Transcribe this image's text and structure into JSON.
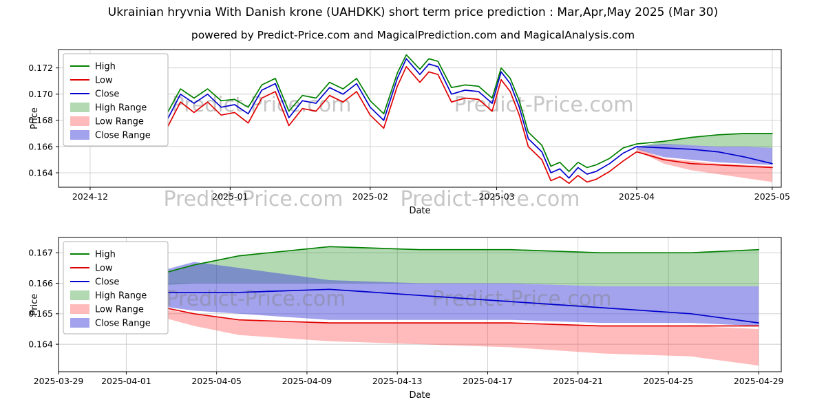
{
  "page": {
    "title": "Ukrainian hryvnia With Danish krone (UAHDKK) short term price prediction : Mar,Apr,May 2025 (Mar 30)",
    "subtitle": "powered by Predict-Price.com and MagicalPrediction.com and MagicalAnalysis.com"
  },
  "watermark_text": "Predict-Price.com",
  "chart_data": [
    {
      "type": "line",
      "xlabel": "Date",
      "ylabel": "Price",
      "x_unit": "days since 2024-11-24",
      "x_domain": [
        0,
        160
      ],
      "y_domain": [
        0.1629,
        0.1734
      ],
      "grid": true,
      "x_ticks": [
        {
          "v": 7,
          "label": "2024-12"
        },
        {
          "v": 38,
          "label": "2025-01"
        },
        {
          "v": 69,
          "label": "2025-02"
        },
        {
          "v": 97,
          "label": "2025-03"
        },
        {
          "v": 128,
          "label": "2025-04"
        },
        {
          "v": 158,
          "label": "2025-05"
        }
      ],
      "y_ticks": [
        0.164,
        0.166,
        0.168,
        0.17,
        0.172
      ],
      "legend": {
        "position": "upper left",
        "entries": [
          {
            "label": "High",
            "type": "line",
            "color": "#008000"
          },
          {
            "label": "Low",
            "type": "line",
            "color": "#e00000"
          },
          {
            "label": "Close",
            "type": "line",
            "color": "#0000cd"
          },
          {
            "label": "High Range",
            "type": "patch",
            "color": "rgba(0,128,0,0.30)"
          },
          {
            "label": "Low Range",
            "type": "patch",
            "color": "rgba(255,60,60,0.35)"
          },
          {
            "label": "Close Range",
            "type": "patch",
            "color": "rgba(70,70,220,0.50)"
          }
        ]
      },
      "series": [
        {
          "name": "High",
          "color": "#008000",
          "x": [
            21,
            24,
            27,
            30,
            33,
            36,
            39,
            42,
            45,
            48,
            51,
            54,
            57,
            60,
            63,
            66,
            69,
            72,
            75,
            77,
            80,
            82,
            84,
            87,
            90,
            93,
            96,
            98,
            100,
            102,
            104,
            107,
            109,
            111,
            113,
            115,
            117,
            119,
            122,
            125,
            128,
            134,
            140,
            146,
            152,
            158
          ],
          "y": [
            0.1697,
            0.1685,
            0.1704,
            0.1697,
            0.1704,
            0.1695,
            0.1696,
            0.169,
            0.1707,
            0.1712,
            0.1687,
            0.1699,
            0.1697,
            0.1709,
            0.1704,
            0.1712,
            0.1695,
            0.1685,
            0.1716,
            0.173,
            0.1719,
            0.1727,
            0.1725,
            0.1705,
            0.1707,
            0.1706,
            0.1697,
            0.172,
            0.1712,
            0.1695,
            0.1671,
            0.1661,
            0.1645,
            0.1648,
            0.1641,
            0.1648,
            0.1644,
            0.1646,
            0.1651,
            0.1659,
            0.1662,
            0.1664,
            0.1667,
            0.1669,
            0.167,
            0.167
          ]
        },
        {
          "name": "Low",
          "color": "#e00000",
          "x": [
            21,
            24,
            27,
            30,
            33,
            36,
            39,
            42,
            45,
            48,
            51,
            54,
            57,
            60,
            63,
            66,
            69,
            72,
            75,
            77,
            80,
            82,
            84,
            87,
            90,
            93,
            96,
            98,
            100,
            102,
            104,
            107,
            109,
            111,
            113,
            115,
            117,
            119,
            122,
            125,
            128,
            134,
            140,
            146,
            152,
            158
          ],
          "y": [
            0.1687,
            0.1674,
            0.1694,
            0.1686,
            0.1694,
            0.1684,
            0.1686,
            0.1678,
            0.1697,
            0.1702,
            0.1676,
            0.1689,
            0.1687,
            0.1699,
            0.1694,
            0.1702,
            0.1684,
            0.1674,
            0.1706,
            0.1721,
            0.1709,
            0.1717,
            0.1715,
            0.1694,
            0.1697,
            0.1696,
            0.1687,
            0.1711,
            0.1702,
            0.1684,
            0.166,
            0.165,
            0.1634,
            0.1637,
            0.1632,
            0.1638,
            0.1633,
            0.1635,
            0.1641,
            0.1649,
            0.1656,
            0.165,
            0.1647,
            0.1646,
            0.1645,
            0.1644
          ]
        },
        {
          "name": "Close",
          "color": "#0000cd",
          "x": [
            21,
            24,
            27,
            30,
            33,
            36,
            39,
            42,
            45,
            48,
            51,
            54,
            57,
            60,
            63,
            66,
            69,
            72,
            75,
            77,
            80,
            82,
            84,
            87,
            90,
            93,
            96,
            98,
            100,
            102,
            104,
            107,
            109,
            111,
            113,
            115,
            117,
            119,
            122,
            125,
            128,
            134,
            140,
            146,
            152,
            158
          ],
          "y": [
            0.1693,
            0.168,
            0.17,
            0.1693,
            0.17,
            0.169,
            0.1692,
            0.1685,
            0.1703,
            0.1708,
            0.1682,
            0.1695,
            0.1693,
            0.1705,
            0.17,
            0.1708,
            0.169,
            0.168,
            0.1712,
            0.1727,
            0.1715,
            0.1723,
            0.1721,
            0.17,
            0.1703,
            0.1702,
            0.1693,
            0.1717,
            0.1708,
            0.169,
            0.1666,
            0.1656,
            0.164,
            0.1643,
            0.1636,
            0.1644,
            0.1639,
            0.1641,
            0.1647,
            0.1655,
            0.166,
            0.1659,
            0.1658,
            0.1656,
            0.1652,
            0.1647
          ]
        }
      ],
      "bands": [
        {
          "name": "High Range",
          "color": "rgba(0,128,0,0.30)",
          "x": [
            128,
            134,
            140,
            146,
            152,
            158
          ],
          "upper": [
            0.166,
            0.1664,
            0.1667,
            0.1669,
            0.167,
            0.167
          ],
          "lower": [
            0.166,
            0.1661,
            0.1661,
            0.166,
            0.166,
            0.1659
          ]
        },
        {
          "name": "Low Range",
          "color": "rgba(255,60,60,0.35)",
          "x": [
            128,
            134,
            140,
            146,
            152,
            158
          ],
          "upper": [
            0.1659,
            0.1651,
            0.1649,
            0.1647,
            0.1646,
            0.1645
          ],
          "lower": [
            0.1657,
            0.1647,
            0.1642,
            0.1639,
            0.1636,
            0.1633
          ]
        },
        {
          "name": "Close Range",
          "color": "rgba(70,70,220,0.50)",
          "x": [
            128,
            134,
            140,
            146,
            152,
            158
          ],
          "upper": [
            0.166,
            0.1662,
            0.1661,
            0.166,
            0.166,
            0.1659
          ],
          "lower": [
            0.1658,
            0.1652,
            0.165,
            0.1648,
            0.1647,
            0.1646
          ]
        }
      ]
    },
    {
      "type": "line",
      "xlabel": "Date",
      "ylabel": "Price",
      "x_unit": "days since 2025-03-29",
      "x_domain": [
        0,
        32
      ],
      "y_domain": [
        0.1631,
        0.1675
      ],
      "grid": true,
      "x_ticks": [
        {
          "v": 0,
          "label": "2025-03-29"
        },
        {
          "v": 3,
          "label": "2025-04-01"
        },
        {
          "v": 7,
          "label": "2025-04-05"
        },
        {
          "v": 11,
          "label": "2025-04-09"
        },
        {
          "v": 15,
          "label": "2025-04-13"
        },
        {
          "v": 19,
          "label": "2025-04-17"
        },
        {
          "v": 23,
          "label": "2025-04-21"
        },
        {
          "v": 27,
          "label": "2025-04-25"
        },
        {
          "v": 31,
          "label": "2025-04-29"
        }
      ],
      "y_ticks": [
        0.164,
        0.165,
        0.166,
        0.167
      ],
      "legend": {
        "position": "upper left",
        "entries": [
          {
            "label": "High",
            "type": "line",
            "color": "#008000"
          },
          {
            "label": "Low",
            "type": "line",
            "color": "#e00000"
          },
          {
            "label": "Close",
            "type": "line",
            "color": "#0000cd"
          },
          {
            "label": "High Range",
            "type": "patch",
            "color": "rgba(0,128,0,0.30)"
          },
          {
            "label": "Low Range",
            "type": "patch",
            "color": "rgba(255,60,60,0.35)"
          },
          {
            "label": "Close Range",
            "type": "patch",
            "color": "rgba(70,70,220,0.50)"
          }
        ]
      },
      "series": [
        {
          "name": "High",
          "color": "#008000",
          "x": [
            2,
            4,
            6,
            8,
            12,
            16,
            20,
            24,
            28,
            31
          ],
          "y": [
            0.1659,
            0.1662,
            0.1666,
            0.1669,
            0.1672,
            0.1671,
            0.1671,
            0.167,
            0.167,
            0.1671
          ]
        },
        {
          "name": "Low",
          "color": "#e00000",
          "x": [
            2,
            4,
            6,
            8,
            12,
            16,
            20,
            24,
            28,
            31
          ],
          "y": [
            0.1657,
            0.1653,
            0.165,
            0.1648,
            0.1647,
            0.1647,
            0.1647,
            0.1646,
            0.1646,
            0.1646
          ]
        },
        {
          "name": "Close",
          "color": "#0000cd",
          "x": [
            2,
            4,
            6,
            8,
            12,
            16,
            20,
            24,
            28,
            31
          ],
          "y": [
            0.1658,
            0.1657,
            0.1657,
            0.1657,
            0.1658,
            0.1656,
            0.1654,
            0.1652,
            0.165,
            0.1647
          ]
        }
      ],
      "bands": [
        {
          "name": "High Range",
          "color": "rgba(0,128,0,0.30)",
          "x": [
            2,
            4,
            6,
            8,
            12,
            16,
            20,
            24,
            28,
            31
          ],
          "upper": [
            0.1659,
            0.1662,
            0.1666,
            0.1669,
            0.1672,
            0.1671,
            0.1671,
            0.167,
            0.167,
            0.1671
          ],
          "lower": [
            0.1658,
            0.1659,
            0.166,
            0.166,
            0.166,
            0.166,
            0.166,
            0.1659,
            0.1659,
            0.1659
          ]
        },
        {
          "name": "Low Range",
          "color": "rgba(255,60,60,0.35)",
          "x": [
            2,
            4,
            6,
            8,
            12,
            16,
            20,
            24,
            28,
            31
          ],
          "upper": [
            0.1656,
            0.1652,
            0.165,
            0.1648,
            0.1647,
            0.1647,
            0.1647,
            0.1646,
            0.1646,
            0.1645
          ],
          "lower": [
            0.1655,
            0.165,
            0.1646,
            0.1643,
            0.1641,
            0.164,
            0.1639,
            0.1637,
            0.1636,
            0.1633
          ]
        },
        {
          "name": "Close Range",
          "color": "rgba(70,70,220,0.50)",
          "x": [
            2,
            4,
            6,
            8,
            12,
            16,
            20,
            24,
            28,
            31
          ],
          "upper": [
            0.1659,
            0.1663,
            0.1667,
            0.1665,
            0.1661,
            0.166,
            0.166,
            0.1659,
            0.1659,
            0.1659
          ],
          "lower": [
            0.1656,
            0.1653,
            0.1651,
            0.165,
            0.1648,
            0.1648,
            0.1648,
            0.1647,
            0.1647,
            0.1646
          ]
        }
      ]
    }
  ]
}
